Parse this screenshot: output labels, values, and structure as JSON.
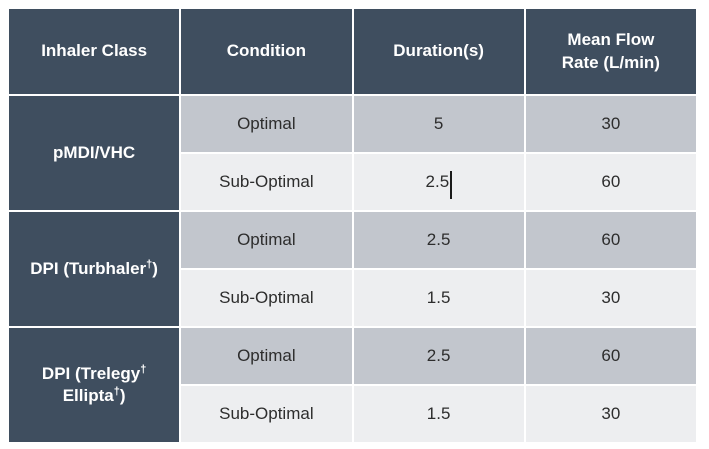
{
  "colors": {
    "page_bg": "#FFFFFF",
    "header_bg": "#3F4E5F",
    "row_optimal_bg": "#C2C6CD",
    "row_suboptimal_bg": "#EDEEF0",
    "header_text": "#FFFFFF",
    "cell_text": "#2D2D2D",
    "text_cursor": "#1A1A1A"
  },
  "table": {
    "headers": [
      {
        "key": "inhaler-class",
        "lines": [
          "Inhaler Class"
        ]
      },
      {
        "key": "condition",
        "lines": [
          "Condition"
        ]
      },
      {
        "key": "duration",
        "lines": [
          "Duration(s)"
        ]
      },
      {
        "key": "mean-flow-rate",
        "lines": [
          "Mean Flow",
          "Rate (L/min)"
        ]
      }
    ],
    "groups": [
      {
        "inhaler_class": {
          "plain_text": "pMDI/VHC",
          "lines": [
            [
              {
                "t": "pMDI/VHC",
                "sup": false
              }
            ]
          ]
        },
        "rows": [
          {
            "condition": "Optimal",
            "duration": "5",
            "mean_flow_rate": "30"
          },
          {
            "condition": "Sub-Optimal",
            "duration": "2.5",
            "mean_flow_rate": "60"
          }
        ]
      },
      {
        "inhaler_class": {
          "plain_text": "DPI (Turbhaler†)",
          "lines": [
            [
              {
                "t": "DPI (Turbhaler",
                "sup": false
              },
              {
                "t": "†",
                "sup": true
              },
              {
                "t": ")",
                "sup": false
              }
            ]
          ]
        },
        "rows": [
          {
            "condition": "Optimal",
            "duration": "2.5",
            "mean_flow_rate": "60"
          },
          {
            "condition": "Sub-Optimal",
            "duration": "1.5",
            "mean_flow_rate": "30"
          }
        ]
      },
      {
        "inhaler_class": {
          "plain_text": "DPI (Trelegy† Ellipta†)",
          "lines": [
            [
              {
                "t": "DPI (Trelegy",
                "sup": false
              },
              {
                "t": "†",
                "sup": true
              }
            ],
            [
              {
                "t": "Ellipta",
                "sup": false
              },
              {
                "t": "†",
                "sup": true
              },
              {
                "t": ")",
                "sup": false
              }
            ]
          ]
        },
        "rows": [
          {
            "condition": "Optimal",
            "duration": "2.5",
            "mean_flow_rate": "60"
          },
          {
            "condition": "Sub-Optimal",
            "duration": "1.5",
            "mean_flow_rate": "30"
          }
        ]
      }
    ]
  },
  "text_cursor": {
    "group_index": 0,
    "row_index": 1,
    "column": "duration"
  }
}
